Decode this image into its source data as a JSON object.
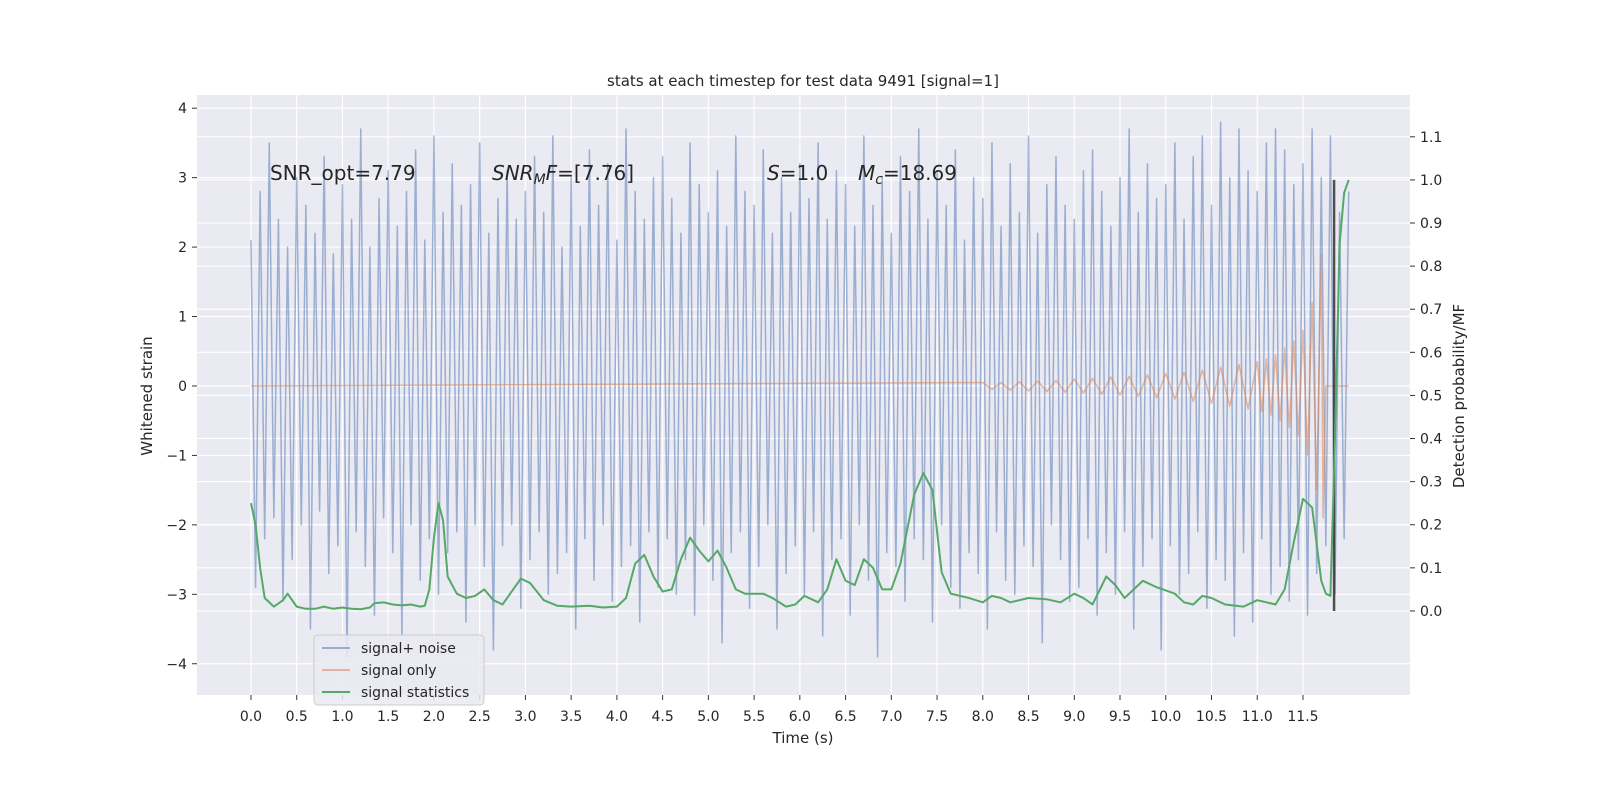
{
  "chart_data": {
    "type": "line",
    "title": "stats at each timestep for test data 9491 [signal=1]",
    "x_label": "Time (s)",
    "y_label": "Whitened strain",
    "y2_label": "Detection probability/MF",
    "xlim": [
      -0.59,
      12.67
    ],
    "ylim": [
      -4.45,
      4.19
    ],
    "y2lim": [
      -0.195,
      1.197
    ],
    "xticks": [
      {
        "value": 0,
        "label": "0.0"
      },
      0.5,
      {
        "value": 1,
        "label": "1.0"
      },
      1.5,
      {
        "value": 2,
        "label": "2.0"
      },
      2.5,
      {
        "value": 3,
        "label": "3.0"
      },
      3.5,
      {
        "value": 4,
        "label": "4.0"
      },
      4.5,
      {
        "value": 5,
        "label": "5.0"
      },
      5.5,
      {
        "value": 6,
        "label": "6.0"
      },
      6.5,
      {
        "value": 7,
        "label": "7.0"
      },
      7.5,
      {
        "value": 8,
        "label": "8.0"
      },
      8.5,
      {
        "value": 9,
        "label": "9.0"
      },
      9.5,
      {
        "value": 10,
        "label": "10.0"
      },
      10.5,
      {
        "value": 11,
        "label": "11.0"
      },
      11.5
    ],
    "yticks": [
      {
        "value": -4,
        "label": "−4"
      },
      {
        "value": -3,
        "label": "−3"
      },
      {
        "value": -2,
        "label": "−2"
      },
      {
        "value": -1,
        "label": "−1"
      },
      0,
      1,
      2,
      3,
      4
    ],
    "y2ticks": [
      {
        "value": 0,
        "label": "0.0"
      },
      0.1,
      0.2,
      0.3,
      0.4,
      0.5,
      0.6,
      0.7,
      0.8,
      0.9,
      {
        "value": 1,
        "label": "1.0"
      },
      1.1
    ],
    "grid": true,
    "legend": "lower left",
    "annotations": [
      {
        "parts": [
          {
            "text": "SNR_opt=7.79"
          }
        ]
      },
      {
        "parts": [
          {
            "text": "SNR",
            "style": "italic"
          },
          {
            "text": "M",
            "style": "italic-sub"
          },
          {
            "text": "F",
            "style": "italic"
          },
          {
            "text": "=[7.76]"
          }
        ]
      },
      {
        "parts": [
          {
            "text": "S",
            "style": "italic"
          },
          {
            "text": "=1.0"
          }
        ]
      },
      {
        "parts": [
          {
            "text": "M",
            "style": "italic"
          },
          {
            "text": "c",
            "style": "italic-sub"
          },
          {
            "text": "=18.69"
          }
        ]
      }
    ],
    "vline": {
      "x": 11.84,
      "y2": [
        0,
        1.0
      ],
      "color": "#333333"
    },
    "series": [
      {
        "name": "signal+ noise",
        "color": "#4c72b0",
        "opacity": 0.5,
        "x": [
          0,
          0.05,
          0.1,
          0.15,
          0.2,
          0.25,
          0.3,
          0.35,
          0.4,
          0.45,
          0.5,
          0.55,
          0.6,
          0.65,
          0.7,
          0.75,
          0.8,
          0.85,
          0.9,
          0.95,
          1,
          1.05,
          1.1,
          1.15,
          1.2,
          1.25,
          1.3,
          1.35,
          1.4,
          1.45,
          1.5,
          1.55,
          1.6,
          1.65,
          1.7,
          1.75,
          1.8,
          1.85,
          1.9,
          1.95,
          2,
          2.05,
          2.1,
          2.15,
          2.2,
          2.25,
          2.3,
          2.35,
          2.4,
          2.45,
          2.5,
          2.55,
          2.6,
          2.65,
          2.7,
          2.75,
          2.8,
          2.85,
          2.9,
          2.95,
          3,
          3.05,
          3.1,
          3.15,
          3.2,
          3.25,
          3.3,
          3.35,
          3.4,
          3.45,
          3.5,
          3.55,
          3.6,
          3.65,
          3.7,
          3.75,
          3.8,
          3.85,
          3.9,
          3.95,
          4,
          4.05,
          4.1,
          4.15,
          4.2,
          4.25,
          4.3,
          4.35,
          4.4,
          4.45,
          4.5,
          4.55,
          4.6,
          4.65,
          4.7,
          4.75,
          4.8,
          4.85,
          4.9,
          4.95,
          5,
          5.05,
          5.1,
          5.15,
          5.2,
          5.25,
          5.3,
          5.35,
          5.4,
          5.45,
          5.5,
          5.55,
          5.6,
          5.65,
          5.7,
          5.75,
          5.8,
          5.85,
          5.9,
          5.95,
          6,
          6.05,
          6.1,
          6.15,
          6.2,
          6.25,
          6.3,
          6.35,
          6.4,
          6.45,
          6.5,
          6.55,
          6.6,
          6.65,
          6.7,
          6.75,
          6.8,
          6.85,
          6.9,
          6.95,
          7,
          7.05,
          7.1,
          7.15,
          7.2,
          7.25,
          7.3,
          7.35,
          7.4,
          7.45,
          7.5,
          7.55,
          7.6,
          7.65,
          7.7,
          7.75,
          7.8,
          7.85,
          7.9,
          7.95,
          8,
          8.05,
          8.1,
          8.15,
          8.2,
          8.25,
          8.3,
          8.35,
          8.4,
          8.45,
          8.5,
          8.55,
          8.6,
          8.65,
          8.7,
          8.75,
          8.8,
          8.85,
          8.9,
          8.95,
          9,
          9.05,
          9.1,
          9.15,
          9.2,
          9.25,
          9.3,
          9.35,
          9.4,
          9.45,
          9.5,
          9.55,
          9.6,
          9.65,
          9.7,
          9.75,
          9.8,
          9.85,
          9.9,
          9.95,
          10,
          10.05,
          10.1,
          10.15,
          10.2,
          10.25,
          10.3,
          10.35,
          10.4,
          10.45,
          10.5,
          10.55,
          10.6,
          10.65,
          10.7,
          10.75,
          10.8,
          10.85,
          10.9,
          10.95,
          11,
          11.05,
          11.1,
          11.15,
          11.2,
          11.25,
          11.3,
          11.35,
          11.4,
          11.45,
          11.5,
          11.55,
          11.6,
          11.65,
          11.7,
          11.75,
          11.8,
          11.85,
          11.9,
          11.95,
          12
        ],
        "values": [
          2.1,
          -2.9,
          2.8,
          -2.2,
          3.5,
          -1.9,
          2.4,
          -3.1,
          2.0,
          -2.5,
          3.0,
          -2.0,
          2.6,
          -3.5,
          2.2,
          -1.8,
          3.3,
          -2.7,
          1.9,
          -2.3,
          2.9,
          -3.9,
          2.4,
          -2.1,
          3.7,
          -2.6,
          2.0,
          -3.3,
          2.7,
          -1.9,
          3.1,
          -2.4,
          2.3,
          -3.6,
          2.8,
          -2.0,
          3.4,
          -2.8,
          2.1,
          -2.2,
          3.6,
          -3.0,
          2.5,
          -2.4,
          3.2,
          -2.1,
          2.6,
          -3.4,
          2.9,
          -2.0,
          3.5,
          -2.6,
          2.2,
          -3.8,
          2.7,
          -2.3,
          3.1,
          -2.0,
          2.4,
          -3.2,
          2.8,
          -2.5,
          3.3,
          -2.1,
          2.5,
          -3.0,
          3.6,
          -2.7,
          2.0,
          -2.4,
          3.0,
          -3.5,
          2.3,
          -2.2,
          3.4,
          -2.8,
          2.6,
          -2.0,
          3.2,
          -3.1,
          2.1,
          -2.6,
          3.7,
          -2.3,
          2.8,
          -3.4,
          2.4,
          -2.1,
          3.0,
          -2.9,
          3.3,
          -2.2,
          2.7,
          -3.0,
          2.2,
          -2.5,
          3.5,
          -3.3,
          2.9,
          -2.0,
          2.5,
          -2.8,
          3.1,
          -3.7,
          2.3,
          -2.4,
          3.6,
          -2.1,
          2.8,
          -3.2,
          2.6,
          -2.6,
          3.4,
          -2.0,
          2.2,
          -3.5,
          3.0,
          -2.7,
          2.5,
          -2.3,
          3.2,
          -3.0,
          2.7,
          -2.1,
          3.5,
          -3.6,
          2.4,
          -2.5,
          3.1,
          -2.2,
          2.9,
          -3.3,
          2.3,
          -2.0,
          3.6,
          -2.8,
          2.6,
          -3.9,
          3.0,
          -2.4,
          2.2,
          -2.6,
          3.3,
          -3.1,
          2.8,
          -2.2,
          3.7,
          -2.5,
          2.4,
          -3.4,
          3.1,
          -2.0,
          2.6,
          -2.9,
          3.4,
          -3.2,
          2.1,
          -2.4,
          3.0,
          -2.7,
          2.7,
          -3.5,
          3.5,
          -2.1,
          2.3,
          -2.8,
          3.2,
          -3.0,
          2.5,
          -2.3,
          3.6,
          -2.6,
          2.2,
          -3.7,
          2.9,
          -2.0,
          3.3,
          -2.5,
          2.6,
          -3.1,
          2.4,
          -2.9,
          3.1,
          -2.2,
          3.4,
          -3.3,
          2.8,
          -2.4,
          2.3,
          -3.0,
          3.0,
          -2.1,
          3.7,
          -3.5,
          2.5,
          -2.6,
          3.2,
          -2.2,
          2.7,
          -3.8,
          2.9,
          -2.3,
          3.5,
          -3.0,
          2.4,
          -2.7,
          3.3,
          -2.1,
          3.6,
          -3.2,
          2.6,
          -2.5,
          3.8,
          -2.8,
          3.0,
          -3.6,
          3.7,
          -2.4,
          3.1,
          -3.4,
          2.8,
          -2.2,
          3.5,
          -3.0,
          3.7,
          -2.6,
          3.4,
          -3.1,
          2.9,
          -2.5,
          3.2,
          -3.3,
          3.7,
          -2.7,
          3.0,
          -2.3,
          3.6,
          -3.0,
          2.5,
          -2.2,
          2.8
        ]
      },
      {
        "name": "signal only",
        "color": "#dd8452",
        "opacity": 0.55,
        "x": [
          0,
          8.0,
          8.1,
          8.2,
          8.3,
          8.4,
          8.5,
          8.6,
          8.7,
          8.8,
          8.9,
          9.0,
          9.1,
          9.2,
          9.3,
          9.4,
          9.5,
          9.6,
          9.7,
          9.8,
          9.9,
          10.0,
          10.1,
          10.2,
          10.3,
          10.4,
          10.5,
          10.6,
          10.7,
          10.8,
          10.9,
          11.0,
          11.05,
          11.1,
          11.15,
          11.2,
          11.25,
          11.3,
          11.35,
          11.4,
          11.45,
          11.5,
          11.55,
          11.6,
          11.65,
          11.7,
          11.72,
          11.75,
          12.0
        ],
        "values": [
          0,
          0.05,
          -0.05,
          0.05,
          -0.06,
          0.06,
          -0.07,
          0.07,
          -0.08,
          0.08,
          -0.09,
          0.1,
          -0.1,
          0.11,
          -0.12,
          0.13,
          -0.13,
          0.14,
          -0.15,
          0.16,
          -0.17,
          0.18,
          -0.19,
          0.2,
          -0.22,
          0.23,
          -0.25,
          0.27,
          -0.29,
          0.31,
          -0.33,
          0.35,
          -0.37,
          0.39,
          -0.42,
          0.45,
          -0.5,
          0.55,
          -0.6,
          0.65,
          -0.72,
          0.8,
          -1.0,
          1.2,
          -1.5,
          1.9,
          -1.9,
          0,
          0
        ]
      },
      {
        "name": "signal statistics",
        "color": "#55a868",
        "opacity": 1,
        "axis": "y2",
        "x": [
          0,
          0.05,
          0.1,
          0.15,
          0.25,
          0.35,
          0.4,
          0.5,
          0.6,
          0.7,
          0.8,
          0.9,
          1.0,
          1.1,
          1.2,
          1.3,
          1.35,
          1.45,
          1.55,
          1.65,
          1.75,
          1.85,
          1.9,
          1.95,
          2.0,
          2.05,
          2.1,
          2.15,
          2.25,
          2.35,
          2.45,
          2.55,
          2.65,
          2.75,
          2.85,
          2.95,
          3.05,
          3.2,
          3.35,
          3.5,
          3.7,
          3.85,
          4.0,
          4.1,
          4.2,
          4.3,
          4.4,
          4.5,
          4.6,
          4.7,
          4.8,
          4.9,
          5.0,
          5.1,
          5.2,
          5.3,
          5.4,
          5.6,
          5.7,
          5.85,
          5.95,
          6.05,
          6.2,
          6.3,
          6.4,
          6.5,
          6.6,
          6.7,
          6.8,
          6.9,
          7.0,
          7.1,
          7.25,
          7.35,
          7.45,
          7.55,
          7.65,
          7.85,
          8.0,
          8.1,
          8.2,
          8.3,
          8.5,
          8.7,
          8.85,
          9.0,
          9.1,
          9.2,
          9.35,
          9.45,
          9.55,
          9.65,
          9.75,
          9.9,
          10.1,
          10.2,
          10.3,
          10.4,
          10.5,
          10.65,
          10.85,
          11.0,
          11.1,
          11.2,
          11.3,
          11.4,
          11.5,
          11.6,
          11.7,
          11.75,
          11.8,
          11.85,
          11.9,
          11.95,
          12.0
        ],
        "values": [
          0.25,
          0.2,
          0.1,
          0.03,
          0.01,
          0.025,
          0.04,
          0.01,
          0.005,
          0.005,
          0.01,
          0.005,
          0.008,
          0.005,
          0.004,
          0.008,
          0.018,
          0.02,
          0.015,
          0.013,
          0.015,
          0.01,
          0.012,
          0.05,
          0.17,
          0.25,
          0.21,
          0.08,
          0.04,
          0.03,
          0.035,
          0.05,
          0.025,
          0.015,
          0.045,
          0.075,
          0.065,
          0.025,
          0.012,
          0.01,
          0.012,
          0.008,
          0.01,
          0.03,
          0.11,
          0.13,
          0.08,
          0.045,
          0.05,
          0.12,
          0.17,
          0.14,
          0.115,
          0.14,
          0.1,
          0.05,
          0.04,
          0.04,
          0.03,
          0.01,
          0.015,
          0.035,
          0.02,
          0.05,
          0.12,
          0.07,
          0.06,
          0.12,
          0.1,
          0.05,
          0.05,
          0.11,
          0.27,
          0.32,
          0.28,
          0.09,
          0.04,
          0.03,
          0.02,
          0.035,
          0.03,
          0.02,
          0.03,
          0.027,
          0.02,
          0.04,
          0.03,
          0.015,
          0.08,
          0.06,
          0.03,
          0.05,
          0.07,
          0.055,
          0.04,
          0.02,
          0.015,
          0.035,
          0.03,
          0.015,
          0.01,
          0.025,
          0.02,
          0.015,
          0.05,
          0.16,
          0.26,
          0.24,
          0.07,
          0.04,
          0.035,
          0.4,
          0.85,
          0.97,
          1.0
        ]
      }
    ]
  }
}
